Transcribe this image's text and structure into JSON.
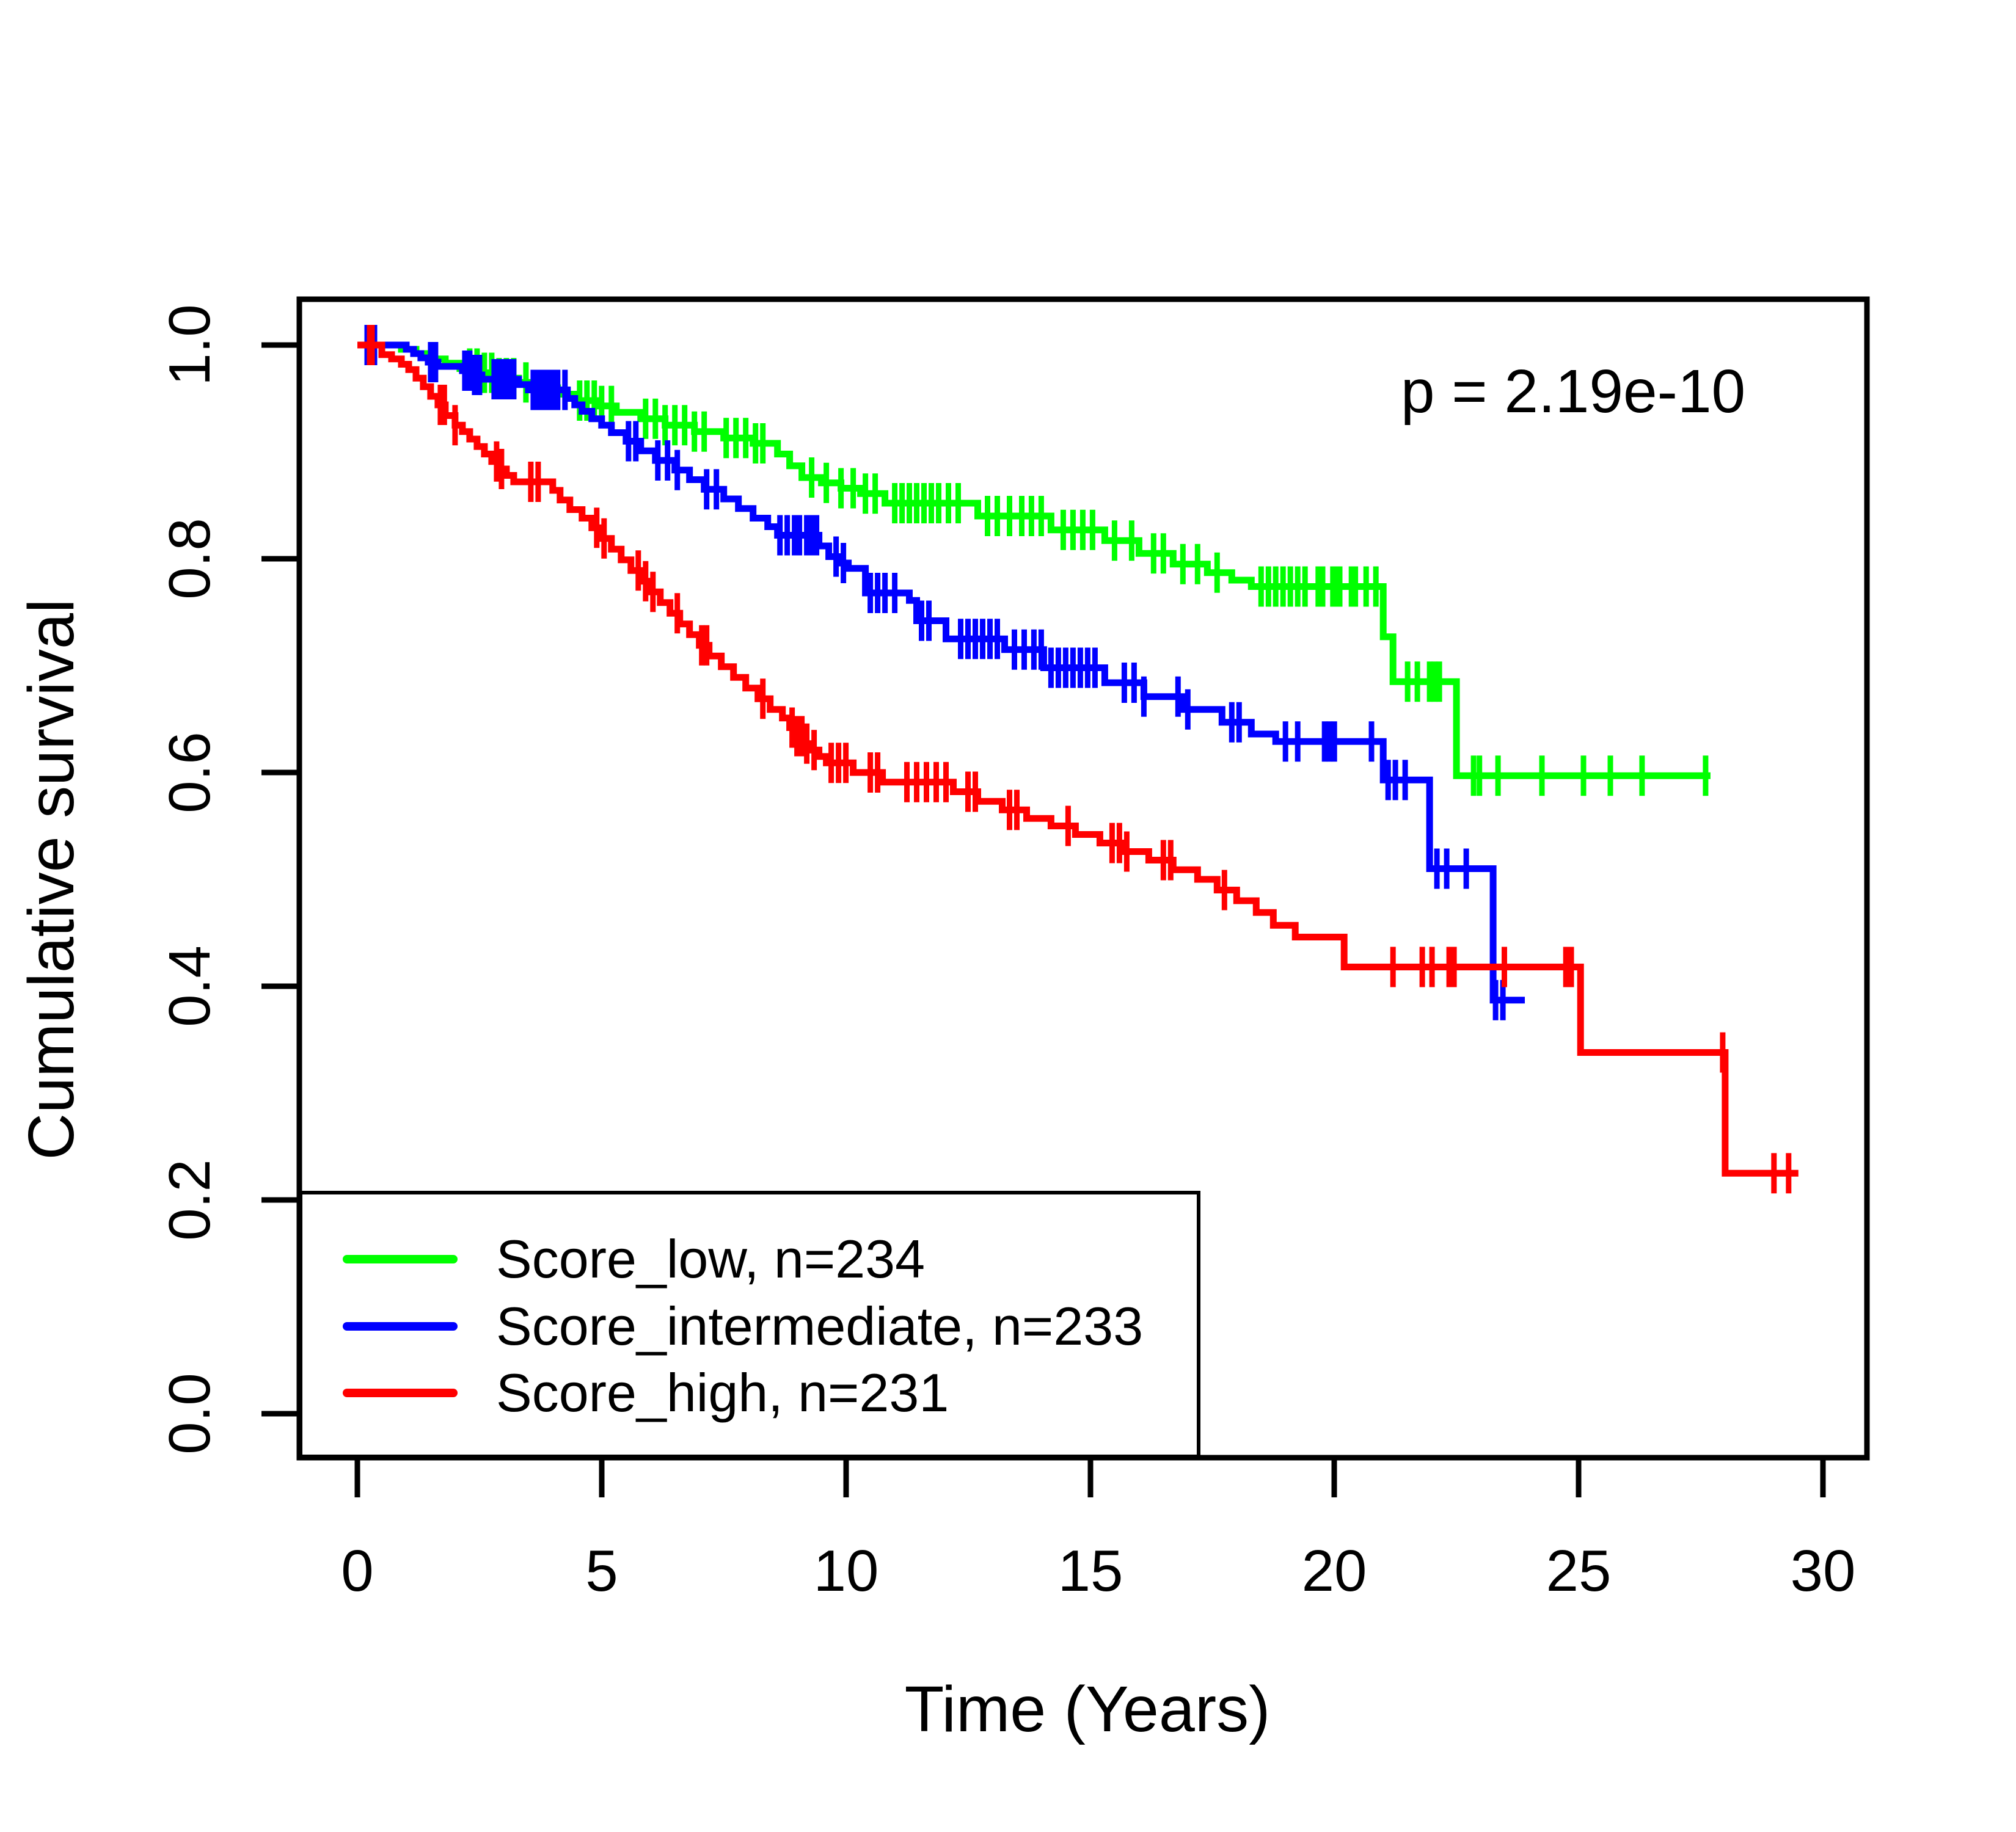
{
  "figure": {
    "background": "#FFFFFF"
  },
  "annotation": {
    "p_value": "p = 2.19e-10"
  },
  "axes": {
    "x": {
      "label": "Time (Years)",
      "ticks": [
        "0",
        "5",
        "10",
        "15",
        "20",
        "25",
        "30"
      ],
      "tick_values": [
        0,
        5,
        10,
        15,
        20,
        25,
        30
      ],
      "range": [
        0,
        30
      ]
    },
    "y": {
      "label": "Cumulative survival",
      "ticks": [
        "0.0",
        "0.2",
        "0.4",
        "0.6",
        "0.8",
        "1.0"
      ],
      "tick_values": [
        0,
        0.2,
        0.4,
        0.6,
        0.8,
        1.0
      ],
      "range": [
        0,
        1
      ]
    }
  },
  "legend": {
    "items": [
      {
        "label": "Score_low, n=234",
        "color": "#00FF00"
      },
      {
        "label": "Score_intermediate, n=233",
        "color": "#0000FF"
      },
      {
        "label": "Score_high, n=231",
        "color": "#FF0000"
      }
    ]
  },
  "chart_data": {
    "type": "line",
    "subtype": "kaplan-meier-step",
    "title": "",
    "xlabel": "Time (Years)",
    "ylabel": "Cumulative survival",
    "xlim": [
      0,
      30
    ],
    "ylim": [
      0,
      1
    ],
    "grid": false,
    "legend_position": "bottom-left-box",
    "p_value": "2.19e-10",
    "series": [
      {
        "name": "Score_low",
        "n": 234,
        "color": "#00FF00",
        "steps": [
          [
            0,
            1.0
          ],
          [
            0.9,
            0.996
          ],
          [
            1.2,
            0.992
          ],
          [
            1.5,
            0.987
          ],
          [
            1.8,
            0.983
          ],
          [
            2.1,
            0.978
          ],
          [
            2.5,
            0.974
          ],
          [
            2.9,
            0.969
          ],
          [
            3.3,
            0.965
          ],
          [
            3.7,
            0.96
          ],
          [
            4.1,
            0.954
          ],
          [
            4.5,
            0.948
          ],
          [
            4.9,
            0.943
          ],
          [
            5.3,
            0.937
          ],
          [
            5.8,
            0.931
          ],
          [
            6.3,
            0.925
          ],
          [
            6.9,
            0.919
          ],
          [
            7.5,
            0.913
          ],
          [
            8.1,
            0.908
          ],
          [
            8.6,
            0.898
          ],
          [
            8.85,
            0.887
          ],
          [
            9.1,
            0.876
          ],
          [
            9.5,
            0.871
          ],
          [
            9.9,
            0.866
          ],
          [
            10.3,
            0.861
          ],
          [
            10.8,
            0.852
          ],
          [
            12.7,
            0.84
          ],
          [
            14.2,
            0.827
          ],
          [
            15.3,
            0.817
          ],
          [
            16.0,
            0.805
          ],
          [
            16.7,
            0.795
          ],
          [
            17.4,
            0.787
          ],
          [
            17.9,
            0.78
          ],
          [
            18.3,
            0.774
          ],
          [
            21.0,
            0.727
          ],
          [
            21.2,
            0.685
          ],
          [
            22.5,
            0.597
          ]
        ],
        "end_time": 27.7,
        "censor_times": [
          2.3,
          2.45,
          2.6,
          2.75,
          2.9,
          3.05,
          3.2,
          3.45,
          4.55,
          4.7,
          4.85,
          5.0,
          5.2,
          5.9,
          6.1,
          6.3,
          6.5,
          6.7,
          6.9,
          7.1,
          7.55,
          7.75,
          7.95,
          8.15,
          8.3,
          9.3,
          9.6,
          9.9,
          10.15,
          10.4,
          10.6,
          11.0,
          11.15,
          11.3,
          11.45,
          11.6,
          11.75,
          11.9,
          12.1,
          12.3,
          12.9,
          13.1,
          13.35,
          13.6,
          13.8,
          14.0,
          14.45,
          14.65,
          14.85,
          15.05,
          15.5,
          15.85,
          16.3,
          16.5,
          16.9,
          17.2,
          17.6,
          18.5,
          18.65,
          18.8,
          18.95,
          19.1,
          19.25,
          19.4,
          19.67,
          19.76,
          19.97,
          20.05,
          20.11,
          20.35,
          20.43,
          20.65,
          20.85,
          21.5,
          21.7,
          21.95,
          22.05,
          22.15,
          22.85,
          22.97,
          23.35,
          24.25,
          25.1,
          25.65,
          26.3,
          27.6
        ]
      },
      {
        "name": "Score_intermediate",
        "n": 233,
        "color": "#0000FF",
        "steps": [
          [
            0,
            1.0
          ],
          [
            1.0,
            0.996
          ],
          [
            1.15,
            0.992
          ],
          [
            1.3,
            0.988
          ],
          [
            1.45,
            0.984
          ],
          [
            1.65,
            0.98
          ],
          [
            2.15,
            0.976
          ],
          [
            2.4,
            0.972
          ],
          [
            2.55,
            0.968
          ],
          [
            3.3,
            0.963
          ],
          [
            3.5,
            0.958
          ],
          [
            4.3,
            0.95
          ],
          [
            4.45,
            0.944
          ],
          [
            4.6,
            0.938
          ],
          [
            4.8,
            0.931
          ],
          [
            5.0,
            0.925
          ],
          [
            5.2,
            0.918
          ],
          [
            5.5,
            0.91
          ],
          [
            5.8,
            0.901
          ],
          [
            6.1,
            0.892
          ],
          [
            6.5,
            0.883
          ],
          [
            6.8,
            0.874
          ],
          [
            7.1,
            0.865
          ],
          [
            7.5,
            0.856
          ],
          [
            7.8,
            0.847
          ],
          [
            8.1,
            0.838
          ],
          [
            8.4,
            0.83
          ],
          [
            8.6,
            0.822
          ],
          [
            9.45,
            0.812
          ],
          [
            9.65,
            0.802
          ],
          [
            9.85,
            0.796
          ],
          [
            10.05,
            0.791
          ],
          [
            10.4,
            0.768
          ],
          [
            11.3,
            0.761
          ],
          [
            11.45,
            0.742
          ],
          [
            12.05,
            0.725
          ],
          [
            13.25,
            0.715
          ],
          [
            14.05,
            0.698
          ],
          [
            15.3,
            0.684
          ],
          [
            16.1,
            0.671
          ],
          [
            16.9,
            0.659
          ],
          [
            17.7,
            0.647
          ],
          [
            18.3,
            0.636
          ],
          [
            18.8,
            0.629
          ],
          [
            21.0,
            0.593
          ],
          [
            21.95,
            0.51
          ],
          [
            23.25,
            0.387
          ]
        ],
        "end_time": 23.9,
        "censor_times": [
          0.2,
          0.28,
          0.35,
          1.5,
          1.6,
          2.2,
          2.3,
          2.4,
          2.5,
          2.8,
          2.9,
          3.0,
          3.1,
          3.2,
          3.6,
          3.7,
          3.8,
          3.9,
          4.0,
          4.1,
          4.25,
          5.55,
          5.7,
          6.15,
          6.35,
          6.55,
          7.15,
          7.35,
          8.65,
          8.8,
          8.95,
          9.05,
          9.2,
          9.3,
          9.4,
          9.8,
          9.95,
          10.5,
          10.65,
          10.8,
          11.0,
          11.55,
          11.7,
          12.35,
          12.5,
          12.65,
          12.8,
          12.95,
          13.1,
          13.45,
          13.65,
          13.85,
          14.0,
          14.2,
          14.35,
          14.5,
          14.65,
          14.8,
          14.95,
          15.1,
          15.7,
          15.9,
          16.1,
          16.8,
          17.0,
          17.9,
          18.05,
          19.0,
          19.25,
          19.8,
          19.9,
          20.0,
          20.76,
          21.1,
          21.25,
          21.45,
          22.1,
          22.3,
          22.7,
          23.3,
          23.45
        ]
      },
      {
        "name": "Score_high",
        "n": 231,
        "color": "#FF0000",
        "steps": [
          [
            0,
            1.0
          ],
          [
            0.5,
            0.991
          ],
          [
            0.7,
            0.987
          ],
          [
            0.9,
            0.982
          ],
          [
            1.05,
            0.977
          ],
          [
            1.2,
            0.969
          ],
          [
            1.35,
            0.961
          ],
          [
            1.5,
            0.952
          ],
          [
            1.65,
            0.944
          ],
          [
            1.8,
            0.934
          ],
          [
            2.0,
            0.925
          ],
          [
            2.15,
            0.919
          ],
          [
            2.3,
            0.912
          ],
          [
            2.45,
            0.905
          ],
          [
            2.6,
            0.898
          ],
          [
            2.75,
            0.891
          ],
          [
            2.9,
            0.884
          ],
          [
            3.05,
            0.878
          ],
          [
            3.2,
            0.872
          ],
          [
            4.0,
            0.864
          ],
          [
            4.15,
            0.855
          ],
          [
            4.35,
            0.846
          ],
          [
            4.6,
            0.838
          ],
          [
            4.8,
            0.829
          ],
          [
            5.0,
            0.819
          ],
          [
            5.2,
            0.809
          ],
          [
            5.4,
            0.799
          ],
          [
            5.6,
            0.789
          ],
          [
            5.8,
            0.779
          ],
          [
            6.0,
            0.769
          ],
          [
            6.2,
            0.759
          ],
          [
            6.4,
            0.749
          ],
          [
            6.6,
            0.739
          ],
          [
            6.8,
            0.729
          ],
          [
            7.0,
            0.719
          ],
          [
            7.2,
            0.709
          ],
          [
            7.45,
            0.699
          ],
          [
            7.7,
            0.689
          ],
          [
            7.95,
            0.679
          ],
          [
            8.2,
            0.669
          ],
          [
            8.45,
            0.659
          ],
          [
            8.7,
            0.651
          ],
          [
            8.85,
            0.642
          ],
          [
            9.0,
            0.634
          ],
          [
            9.15,
            0.627
          ],
          [
            9.3,
            0.621
          ],
          [
            9.45,
            0.615
          ],
          [
            9.6,
            0.609
          ],
          [
            10.15,
            0.6
          ],
          [
            10.75,
            0.591
          ],
          [
            12.2,
            0.582
          ],
          [
            12.7,
            0.573
          ],
          [
            13.2,
            0.565
          ],
          [
            13.7,
            0.557
          ],
          [
            14.2,
            0.55
          ],
          [
            14.7,
            0.542
          ],
          [
            15.2,
            0.534
          ],
          [
            15.7,
            0.526
          ],
          [
            16.2,
            0.518
          ],
          [
            16.7,
            0.509
          ],
          [
            17.2,
            0.5
          ],
          [
            17.6,
            0.49
          ],
          [
            18.0,
            0.48
          ],
          [
            18.4,
            0.469
          ],
          [
            18.75,
            0.457
          ],
          [
            19.2,
            0.446
          ],
          [
            20.2,
            0.418
          ],
          [
            25.04,
            0.338
          ],
          [
            28.0,
            0.225
          ]
        ],
        "end_time": 29.5,
        "censor_times": [
          0.25,
          0.3,
          1.7,
          1.78,
          2.0,
          2.85,
          2.95,
          3.55,
          3.7,
          4.9,
          5.05,
          5.75,
          5.9,
          6.05,
          6.55,
          7.05,
          7.15,
          8.3,
          8.9,
          9.0,
          9.1,
          9.2,
          9.35,
          9.7,
          9.85,
          10.0,
          10.5,
          10.65,
          11.25,
          11.45,
          11.65,
          11.85,
          12.05,
          12.5,
          12.65,
          13.35,
          13.5,
          14.55,
          15.45,
          15.6,
          15.75,
          16.5,
          16.65,
          17.75,
          21.2,
          21.8,
          22.0,
          22.35,
          22.45,
          23.48,
          24.74,
          24.85,
          27.95,
          29.0,
          29.3
        ]
      }
    ]
  }
}
